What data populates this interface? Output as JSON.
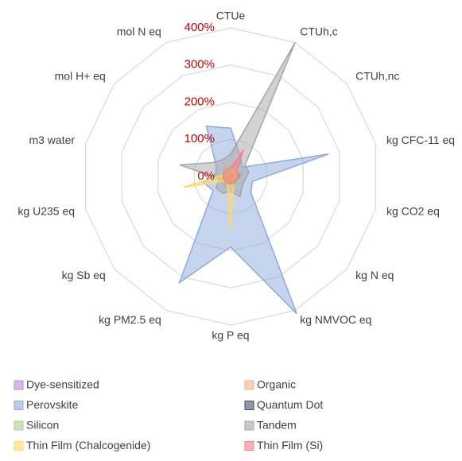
{
  "chart_data": {
    "type": "radar",
    "categories": [
      "CTUe",
      "CTUh,c",
      "CTUh,nc",
      "kg CFC-11 eq",
      "kg CO2 eq",
      "kg N eq",
      "kg NMVOC eq",
      "kg P eq",
      "kg PM2.5 eq",
      "kg Sb eq",
      "kg U235 eq",
      "m3 water",
      "mol H+ eq",
      "mol N eq"
    ],
    "ylim": [
      0,
      400
    ],
    "yticks": [
      {
        "value": 0,
        "label": "0%"
      },
      {
        "value": 100,
        "label": "100%"
      },
      {
        "value": 200,
        "label": "200%"
      },
      {
        "value": 300,
        "label": "300%"
      },
      {
        "value": 400,
        "label": "400%"
      }
    ],
    "grid": true,
    "legend": "bottom",
    "series": [
      {
        "name": "Dye-sensitized",
        "color": "#b78fd6",
        "values": [
          20,
          15,
          15,
          20,
          15,
          15,
          15,
          15,
          15,
          15,
          15,
          15,
          15,
          15
        ]
      },
      {
        "name": "Organic",
        "color": "#f4b183",
        "values": [
          25,
          20,
          20,
          25,
          20,
          20,
          20,
          20,
          20,
          20,
          20,
          20,
          20,
          20
        ]
      },
      {
        "name": "Perovskite",
        "color": "#8faadc",
        "values": [
          130,
          60,
          40,
          270,
          60,
          70,
          410,
          190,
          317,
          60,
          75,
          40,
          50,
          150
        ]
      },
      {
        "name": "Quantum Dot",
        "color": "#44546a",
        "values": [
          20,
          20,
          20,
          30,
          20,
          20,
          20,
          20,
          20,
          20,
          20,
          20,
          20,
          20
        ]
      },
      {
        "name": "Silicon",
        "color": "#a9d18e",
        "values": [
          30,
          20,
          20,
          30,
          25,
          20,
          25,
          30,
          30,
          30,
          25,
          20,
          25,
          30
        ]
      },
      {
        "name": "Tandem",
        "color": "#a5a5a5",
        "values": [
          60,
          400,
          50,
          50,
          40,
          40,
          60,
          40,
          50,
          50,
          30,
          140,
          60,
          50
        ]
      },
      {
        "name": "Thin Film (Chalcogenide)",
        "color": "#ffd966",
        "values": [
          20,
          20,
          15,
          20,
          15,
          15,
          20,
          145,
          20,
          20,
          130,
          20,
          15,
          20
        ]
      },
      {
        "name": "Thin Film (Si)",
        "color": "#ff7c80",
        "values": [
          20,
          80,
          20,
          20,
          20,
          15,
          20,
          20,
          20,
          20,
          20,
          20,
          20,
          20
        ]
      }
    ]
  }
}
